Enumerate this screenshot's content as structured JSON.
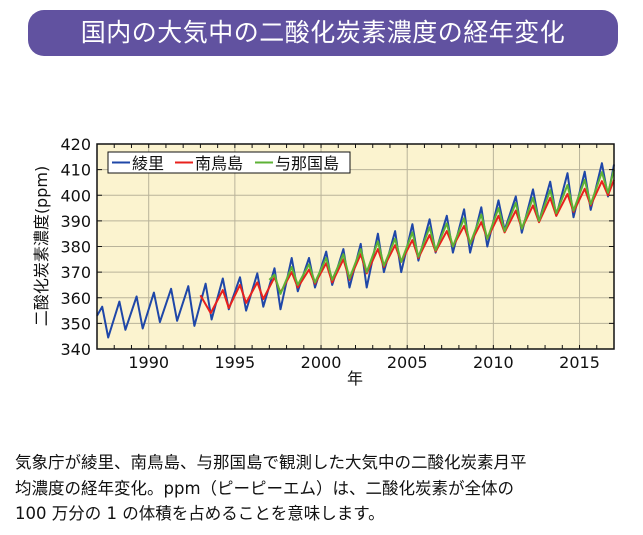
{
  "title": "国内の大気中の二酸化炭素濃度の経年変化",
  "caption": [
    "気象庁が綾里、南鳥島、与那国島で観測した大気中の二酸化炭素月平",
    "均濃度の経年変化。ppm（ピーピーエム）は、二酸化炭素が全体の",
    "100 万分の 1 の体積を占めることを意味します。"
  ],
  "chart_data": {
    "type": "line",
    "xlabel": "年",
    "ylabel": "二酸化炭素濃度(ppm)",
    "xlim": [
      1987,
      2017
    ],
    "ylim": [
      340,
      420
    ],
    "xticks": [
      1990,
      1995,
      2000,
      2005,
      2010,
      2015
    ],
    "yticks": [
      340,
      350,
      360,
      370,
      380,
      390,
      400,
      410,
      420
    ],
    "grid": true,
    "legend_position": "top-left",
    "background_color": "#fbf3cf",
    "series": [
      {
        "name": "綾里",
        "color": "#1f47a8",
        "points": [
          [
            1987.0,
            353
          ],
          [
            1987.3,
            356.5
          ],
          [
            1987.65,
            344.5
          ],
          [
            1988.3,
            358.5
          ],
          [
            1988.65,
            347.5
          ],
          [
            1989.3,
            360.5
          ],
          [
            1989.65,
            348
          ],
          [
            1990.3,
            362
          ],
          [
            1990.65,
            350.5
          ],
          [
            1991.3,
            363.5
          ],
          [
            1991.65,
            351
          ],
          [
            1992.3,
            364.5
          ],
          [
            1992.65,
            349
          ],
          [
            1993.3,
            365.5
          ],
          [
            1993.65,
            351.5
          ],
          [
            1994.3,
            367.5
          ],
          [
            1994.65,
            355.5
          ],
          [
            1995.3,
            368
          ],
          [
            1995.65,
            355
          ],
          [
            1996.3,
            369.5
          ],
          [
            1996.65,
            356.5
          ],
          [
            1997.3,
            371.5
          ],
          [
            1997.65,
            355.5
          ],
          [
            1998.3,
            375.5
          ],
          [
            1998.65,
            362.5
          ],
          [
            1999.3,
            375.5
          ],
          [
            1999.65,
            364
          ],
          [
            2000.3,
            378
          ],
          [
            2000.65,
            365
          ],
          [
            2001.3,
            379
          ],
          [
            2001.65,
            364
          ],
          [
            2002.3,
            381
          ],
          [
            2002.65,
            364
          ],
          [
            2003.3,
            385
          ],
          [
            2003.65,
            370
          ],
          [
            2004.3,
            386
          ],
          [
            2004.65,
            370
          ],
          [
            2005.3,
            388.7
          ],
          [
            2005.65,
            374.5
          ],
          [
            2006.3,
            390.6
          ],
          [
            2006.65,
            377.6
          ],
          [
            2007.3,
            392
          ],
          [
            2007.65,
            377.6
          ],
          [
            2008.3,
            394.5
          ],
          [
            2008.65,
            377.6
          ],
          [
            2009.3,
            395.3
          ],
          [
            2009.65,
            380
          ],
          [
            2010.3,
            398
          ],
          [
            2010.65,
            386.4
          ],
          [
            2011.3,
            399.5
          ],
          [
            2011.65,
            385.4
          ],
          [
            2012.3,
            402.3
          ],
          [
            2012.65,
            389.7
          ],
          [
            2013.3,
            405.3
          ],
          [
            2013.65,
            392
          ],
          [
            2014.3,
            408.6
          ],
          [
            2014.65,
            391.4
          ],
          [
            2015.3,
            409.2
          ],
          [
            2015.65,
            394.3
          ],
          [
            2016.3,
            412.5
          ],
          [
            2016.65,
            399.5
          ],
          [
            2017.0,
            412
          ]
        ]
      },
      {
        "name": "南鳥島",
        "color": "#e8211d",
        "points": [
          [
            1993.0,
            361
          ],
          [
            1993.6,
            354
          ],
          [
            1994.3,
            363
          ],
          [
            1994.65,
            356
          ],
          [
            1995.3,
            365
          ],
          [
            1995.65,
            358
          ],
          [
            1996.3,
            366
          ],
          [
            1996.65,
            359.5
          ],
          [
            1997.3,
            368
          ],
          [
            1997.65,
            362
          ],
          [
            1998.3,
            370
          ],
          [
            1998.65,
            364
          ],
          [
            1999.3,
            371
          ],
          [
            1999.65,
            365.5
          ],
          [
            2000.3,
            373.5
          ],
          [
            2000.65,
            366
          ],
          [
            2001.3,
            375
          ],
          [
            2001.65,
            367
          ],
          [
            2002.3,
            377
          ],
          [
            2002.65,
            369.5
          ],
          [
            2003.3,
            379
          ],
          [
            2003.65,
            372
          ],
          [
            2004.3,
            380.5
          ],
          [
            2004.65,
            374
          ],
          [
            2005.3,
            382.5
          ],
          [
            2005.65,
            375.5
          ],
          [
            2006.3,
            384.5
          ],
          [
            2006.65,
            378
          ],
          [
            2007.3,
            386
          ],
          [
            2007.65,
            380
          ],
          [
            2008.3,
            388
          ],
          [
            2008.65,
            381
          ],
          [
            2009.3,
            389.5
          ],
          [
            2009.65,
            383
          ],
          [
            2010.3,
            392
          ],
          [
            2010.65,
            385.5
          ],
          [
            2011.3,
            394
          ],
          [
            2011.65,
            387
          ],
          [
            2012.3,
            396
          ],
          [
            2012.65,
            389.5
          ],
          [
            2013.3,
            399
          ],
          [
            2013.65,
            392
          ],
          [
            2014.3,
            400.5
          ],
          [
            2014.65,
            393.5
          ],
          [
            2015.3,
            402.5
          ],
          [
            2015.65,
            396
          ],
          [
            2016.3,
            405.5
          ],
          [
            2016.65,
            400
          ],
          [
            2017.0,
            406
          ]
        ]
      },
      {
        "name": "与那国島",
        "color": "#5db236",
        "points": [
          [
            1997.0,
            367
          ],
          [
            1997.3,
            369
          ],
          [
            1997.65,
            361.5
          ],
          [
            1998.3,
            372
          ],
          [
            1998.65,
            365
          ],
          [
            1999.3,
            373
          ],
          [
            1999.65,
            366
          ],
          [
            2000.3,
            375.5
          ],
          [
            2000.65,
            367
          ],
          [
            2001.3,
            377
          ],
          [
            2001.65,
            367.5
          ],
          [
            2002.3,
            379
          ],
          [
            2002.65,
            370
          ],
          [
            2003.3,
            382
          ],
          [
            2003.65,
            372.5
          ],
          [
            2004.3,
            383
          ],
          [
            2004.65,
            374
          ],
          [
            2005.3,
            385.5
          ],
          [
            2005.65,
            376
          ],
          [
            2006.3,
            387.5
          ],
          [
            2006.65,
            378.5
          ],
          [
            2007.3,
            389
          ],
          [
            2007.65,
            380
          ],
          [
            2008.3,
            391
          ],
          [
            2008.65,
            381
          ],
          [
            2009.3,
            392.5
          ],
          [
            2009.65,
            383
          ],
          [
            2010.3,
            395
          ],
          [
            2010.65,
            386
          ],
          [
            2011.3,
            397
          ],
          [
            2011.65,
            387
          ],
          [
            2012.3,
            399
          ],
          [
            2012.65,
            390
          ],
          [
            2013.3,
            402
          ],
          [
            2013.65,
            393
          ],
          [
            2014.3,
            404
          ],
          [
            2014.65,
            394
          ],
          [
            2015.3,
            406
          ],
          [
            2015.65,
            396.5
          ],
          [
            2016.3,
            409
          ],
          [
            2016.65,
            401
          ],
          [
            2017.0,
            410
          ]
        ]
      }
    ]
  }
}
